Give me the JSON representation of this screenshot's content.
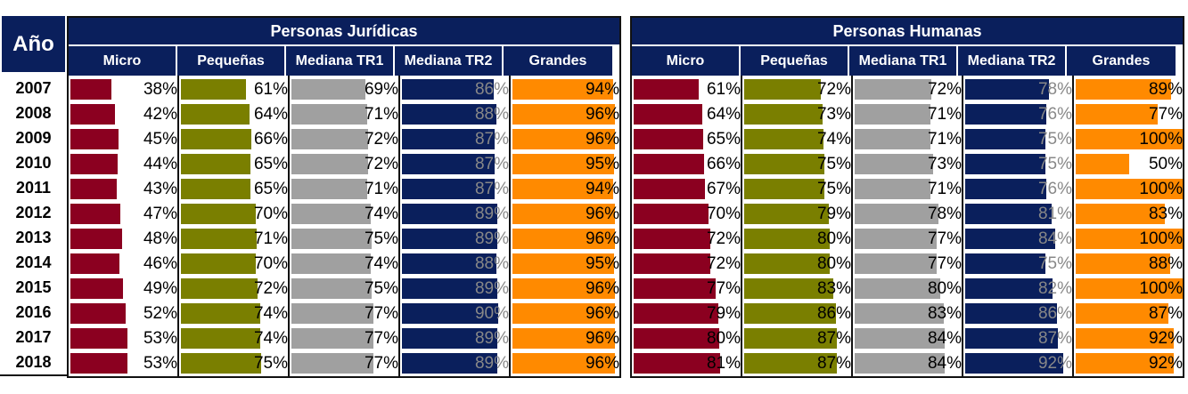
{
  "chart_data": {
    "type": "table",
    "year_header": "Año",
    "years": [
      "2007",
      "2008",
      "2009",
      "2010",
      "2011",
      "2012",
      "2013",
      "2014",
      "2015",
      "2016",
      "2017",
      "2018"
    ],
    "columns": [
      "Micro",
      "Pequeñas",
      "Mediana TR1",
      "Mediana TR2",
      "Grandes"
    ],
    "column_colors": [
      "#8b0020",
      "#7a7f00",
      "#a0a0a0",
      "#0a1f5c",
      "#ff8a00"
    ],
    "value_text_colors": [
      "#000000",
      "#000000",
      "#000000",
      "#888888",
      "#000000"
    ],
    "groups": [
      {
        "title": "Personas Jurídicas",
        "series": [
          {
            "name": "Micro",
            "values": [
              38,
              42,
              45,
              44,
              43,
              47,
              48,
              46,
              49,
              52,
              53,
              53
            ]
          },
          {
            "name": "Pequeñas",
            "values": [
              61,
              64,
              66,
              65,
              65,
              70,
              71,
              70,
              72,
              74,
              74,
              75
            ]
          },
          {
            "name": "Mediana TR1",
            "values": [
              69,
              71,
              72,
              72,
              71,
              74,
              75,
              74,
              75,
              77,
              77,
              77
            ]
          },
          {
            "name": "Mediana TR2",
            "values": [
              86,
              88,
              87,
              87,
              87,
              89,
              89,
              88,
              89,
              90,
              89,
              89
            ]
          },
          {
            "name": "Grandes",
            "values": [
              94,
              96,
              96,
              95,
              94,
              96,
              96,
              95,
              96,
              96,
              96,
              96
            ]
          }
        ]
      },
      {
        "title": "Personas Humanas",
        "series": [
          {
            "name": "Micro",
            "values": [
              61,
              64,
              65,
              66,
              67,
              70,
              72,
              72,
              77,
              79,
              80,
              81
            ]
          },
          {
            "name": "Pequeñas",
            "values": [
              72,
              73,
              74,
              75,
              75,
              79,
              80,
              80,
              83,
              86,
              87,
              87
            ]
          },
          {
            "name": "Mediana TR1",
            "values": [
              72,
              71,
              71,
              73,
              71,
              78,
              77,
              77,
              80,
              83,
              84,
              84
            ]
          },
          {
            "name": "Mediana TR2",
            "values": [
              78,
              76,
              75,
              75,
              76,
              81,
              84,
              75,
              82,
              86,
              87,
              92
            ]
          },
          {
            "name": "Grandes",
            "values": [
              89,
              77,
              100,
              50,
              100,
              83,
              100,
              88,
              100,
              87,
              92,
              92
            ]
          }
        ]
      }
    ]
  }
}
